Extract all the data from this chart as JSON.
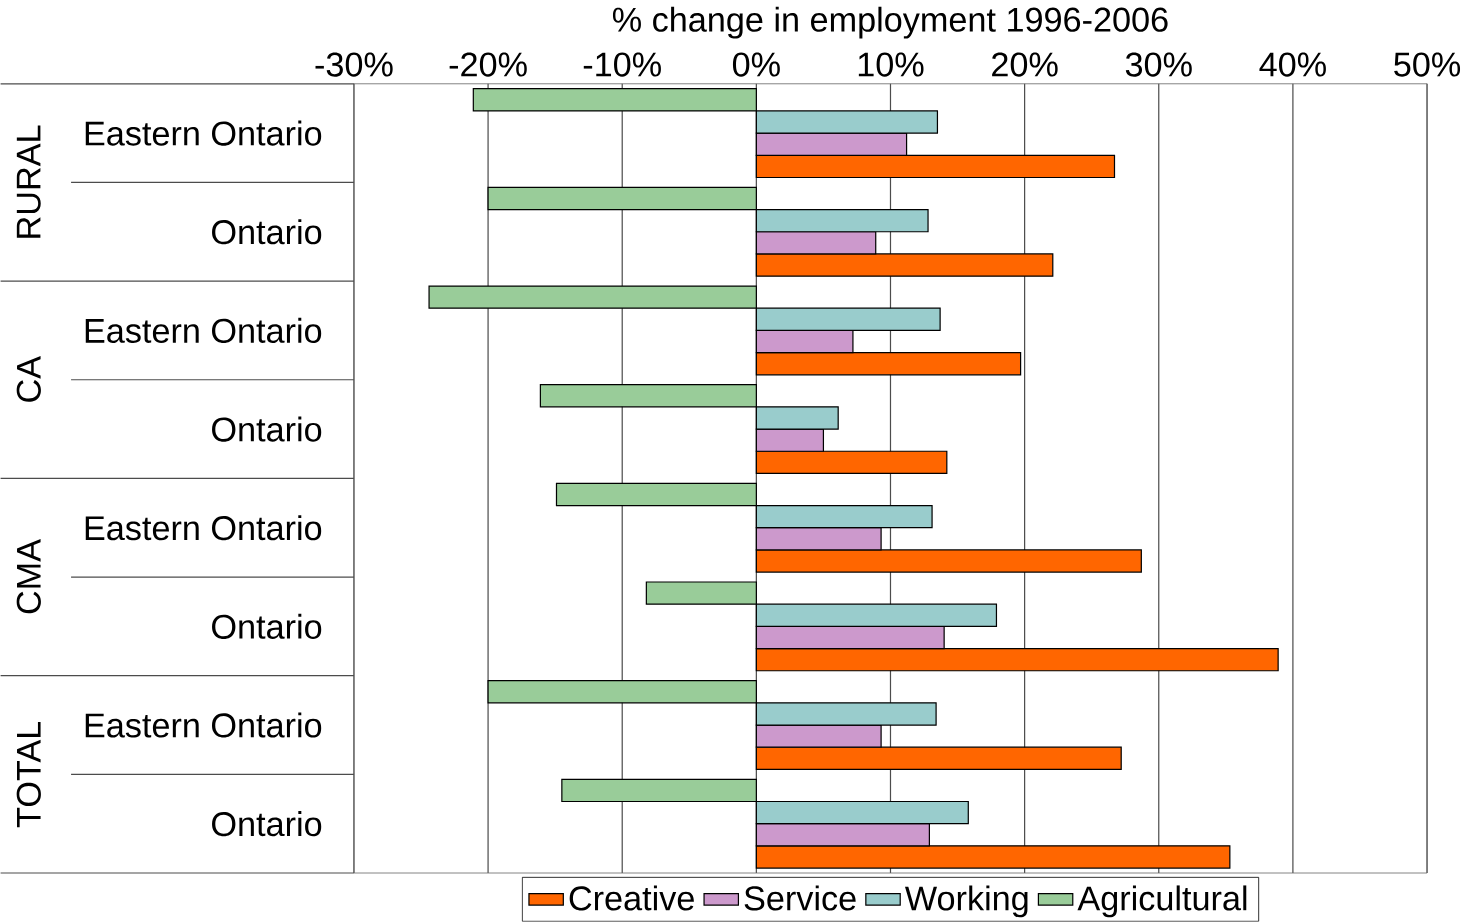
{
  "chart_data": {
    "type": "bar",
    "orientation": "horizontal",
    "xlabel": "% change in employment 1996-2006",
    "categories": [
      "Eastern Ontario",
      "Ontario",
      "Eastern Ontario",
      "Ontario",
      "Eastern Ontario",
      "Ontario",
      "Eastern Ontario",
      "Ontario"
    ],
    "annotations": [
      "RURAL",
      "CA",
      "CMA",
      "TOTAL"
    ],
    "series": [
      {
        "name": "Creative",
        "color": "#ff6600",
        "values": [
          26.7,
          22.1,
          19.7,
          14.2,
          28.7,
          38.9,
          27.2,
          35.3
        ]
      },
      {
        "name": "Service",
        "color": "#cc99cc",
        "values": [
          11.2,
          8.9,
          7.2,
          5.0,
          9.3,
          14.0,
          9.3,
          12.9
        ]
      },
      {
        "name": "Working",
        "color": "#99cccc",
        "values": [
          13.5,
          12.8,
          13.7,
          6.1,
          13.1,
          17.9,
          13.4,
          15.8
        ]
      },
      {
        "name": "Agricultural",
        "color": "#99cc99",
        "values": [
          -21.1,
          -20.0,
          -24.4,
          -16.1,
          -14.9,
          -8.2,
          -20.0,
          -14.5
        ]
      }
    ],
    "xlim": [
      -30,
      50
    ],
    "xticks": [
      {
        "value": -30,
        "label": "-30%"
      },
      {
        "value": -20,
        "label": "-20%"
      },
      {
        "value": -10,
        "label": "-10%"
      },
      {
        "value": 0,
        "label": "0%"
      },
      {
        "value": 10,
        "label": "10%"
      },
      {
        "value": 20,
        "label": "20%"
      },
      {
        "value": 30,
        "label": "30%"
      },
      {
        "value": 40,
        "label": "40%"
      },
      {
        "value": 50,
        "label": "50%"
      }
    ],
    "grid": "x",
    "legend": "bottom"
  }
}
